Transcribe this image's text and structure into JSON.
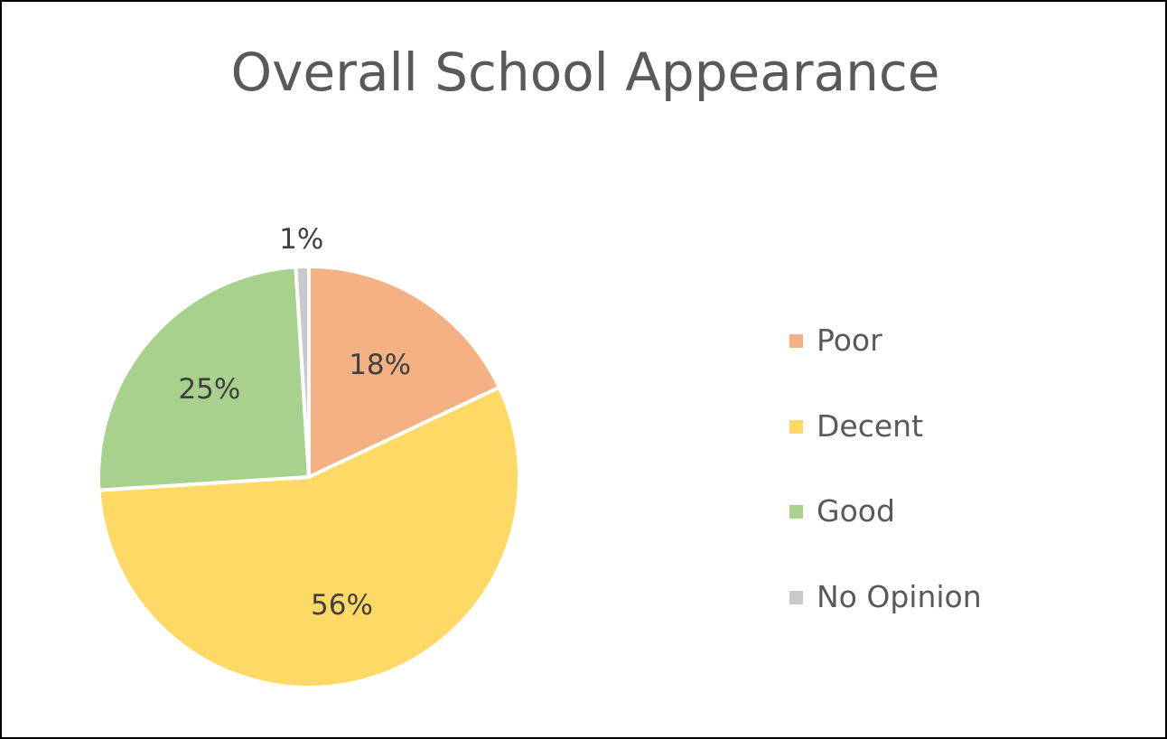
{
  "chart_data": {
    "type": "pie",
    "title": "Overall School Appearance",
    "categories": [
      "Poor",
      "Decent",
      "Good",
      "No Opinion"
    ],
    "values": [
      18,
      56,
      25,
      1
    ],
    "labels": [
      "18%",
      "56%",
      "25%",
      "1%"
    ],
    "colors": [
      "#F4B183",
      "#FFD966",
      "#A9D18E",
      "#C9C9C9"
    ],
    "legend_position": "right"
  }
}
